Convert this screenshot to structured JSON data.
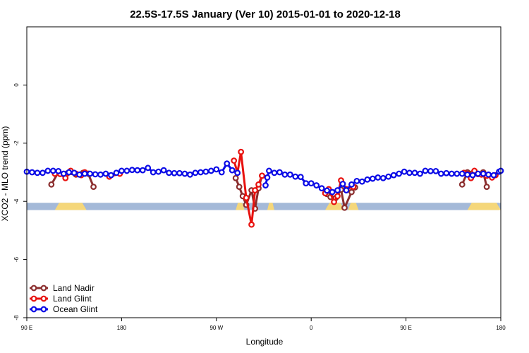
{
  "chart_data": {
    "type": "line",
    "title": "22.5S-17.5S January (Ver 10)   2015-01-01 to 2020-12-18",
    "xlabel": "Longitude",
    "ylabel": "XCO2 - MLO trend (ppm)",
    "xlim": [
      -90,
      180
    ],
    "ylim": [
      -8,
      2
    ],
    "x_ticks": [
      {
        "value": -90,
        "label": "90 E"
      },
      {
        "value": -36,
        "label": "180"
      },
      {
        "value": 18,
        "label": "90 W"
      },
      {
        "value": 72,
        "label": "0"
      },
      {
        "value": 126,
        "label": "90 E"
      },
      {
        "value": 180,
        "label": "180"
      }
    ],
    "y_ticks": [
      {
        "value": 0,
        "label": "0"
      },
      {
        "value": -2,
        "label": "-2"
      },
      {
        "value": -4,
        "label": "-4"
      },
      {
        "value": -6,
        "label": "-6"
      },
      {
        "value": -8,
        "label": "-8"
      }
    ],
    "grid": false,
    "legend_position": "bottom-left",
    "land_band": {
      "y_range": [
        -4.3,
        -4.05
      ],
      "ocean_color": "#a4b9d8",
      "land_color": "#f5d77a",
      "land_segments": [
        [
          -74,
          -56
        ],
        [
          29,
          34
        ],
        [
          47,
          51
        ],
        [
          80,
          91
        ],
        [
          93,
          99
        ],
        [
          161,
          180
        ]
      ]
    },
    "series": [
      {
        "name": "Land Nadir",
        "color": "#8b2e2e",
        "segments": [
          [
            [
              -76,
              -3.42
            ],
            [
              -72,
              -3.0
            ],
            [
              -67,
              -3.04
            ],
            [
              -62,
              -3.08
            ],
            [
              -58,
              -3.02
            ],
            [
              -55,
              -3.05
            ],
            [
              -52,
              -3.5
            ]
          ],
          [
            [
              29,
              -3.2
            ],
            [
              31,
              -3.5
            ],
            [
              33,
              -3.82
            ],
            [
              35,
              -4.12
            ],
            [
              38,
              -3.62
            ],
            [
              40,
              -4.25
            ],
            [
              42,
              -3.55
            ],
            [
              44,
              -3.12
            ]
          ],
          [
            [
              81,
              -3.75
            ],
            [
              83,
              -3.85
            ],
            [
              86,
              -3.88
            ],
            [
              89,
              -3.6
            ],
            [
              91,
              -4.22
            ],
            [
              95,
              -3.68
            ],
            [
              97,
              -3.52
            ]
          ],
          [
            [
              158,
              -3.42
            ],
            [
              161,
              -3.0
            ],
            [
              164,
              -3.03
            ],
            [
              167,
              -3.06
            ],
            [
              170,
              -3.0
            ],
            [
              172,
              -3.5
            ]
          ]
        ]
      },
      {
        "name": "Land Glint",
        "color": "#e8120f",
        "segments": [
          [
            [
              -74,
              -3.05
            ],
            [
              -71,
              -3.06
            ],
            [
              -68,
              -3.2
            ],
            [
              -65,
              -2.95
            ],
            [
              -62,
              -3.05
            ],
            [
              -59,
              -3.1
            ],
            [
              -57,
              -3.0
            ]
          ],
          [
            [
              -43,
              -3.15
            ],
            [
              -37,
              -3.05
            ]
          ],
          [
            [
              28,
              -2.6
            ],
            [
              30,
              -3.02
            ],
            [
              32,
              -2.3
            ],
            [
              35,
              -3.88
            ],
            [
              38,
              -4.8
            ],
            [
              40,
              -3.62
            ],
            [
              42,
              -3.42
            ],
            [
              44,
              -3.12
            ]
          ],
          [
            [
              80,
              -3.72
            ],
            [
              82,
              -3.58
            ],
            [
              85,
              -4.02
            ],
            [
              87,
              -3.82
            ],
            [
              89,
              -3.28
            ],
            [
              92,
              -3.58
            ],
            [
              96,
              -3.5
            ]
          ],
          [
            [
              159,
              -3.02
            ],
            [
              161,
              -3.05
            ],
            [
              163,
              -3.2
            ],
            [
              165,
              -2.95
            ],
            [
              167,
              -3.06
            ],
            [
              169,
              -3.08
            ],
            [
              172,
              -3.12
            ],
            [
              175,
              -3.18
            ],
            [
              177,
              -3.1
            ]
          ]
        ]
      },
      {
        "name": "Ocean Glint",
        "color": "#0a0ae6",
        "segments": [
          [
            [
              -90,
              -2.98
            ],
            [
              -87,
              -3.0
            ],
            [
              -84,
              -3.02
            ],
            [
              -81,
              -3.02
            ],
            [
              -78,
              -2.95
            ],
            [
              -75,
              -2.95
            ],
            [
              -72,
              -2.96
            ],
            [
              -69,
              -3.05
            ],
            [
              -66,
              -3.0
            ],
            [
              -63,
              -3.02
            ],
            [
              -60,
              -3.08
            ],
            [
              -57,
              -3.05
            ],
            [
              -54,
              -3.05
            ],
            [
              -51,
              -3.07
            ],
            [
              -48,
              -3.08
            ],
            [
              -45,
              -3.05
            ],
            [
              -42,
              -3.1
            ],
            [
              -39,
              -3.02
            ],
            [
              -36,
              -2.95
            ],
            [
              -33,
              -2.95
            ],
            [
              -30,
              -2.92
            ],
            [
              -27,
              -2.93
            ],
            [
              -24,
              -2.93
            ],
            [
              -21,
              -2.85
            ],
            [
              -18,
              -3.0
            ],
            [
              -15,
              -2.98
            ],
            [
              -12,
              -2.93
            ],
            [
              -9,
              -3.02
            ],
            [
              -6,
              -3.03
            ],
            [
              -3,
              -3.03
            ],
            [
              0,
              -3.05
            ],
            [
              3,
              -3.08
            ],
            [
              6,
              -3.02
            ],
            [
              9,
              -3.0
            ],
            [
              12,
              -2.98
            ],
            [
              15,
              -2.95
            ],
            [
              18,
              -2.9
            ],
            [
              21,
              -3.0
            ],
            [
              24,
              -2.7
            ],
            [
              27,
              -2.93
            ],
            [
              30,
              -3.02
            ]
          ],
          [
            [
              46,
              -3.45
            ],
            [
              47,
              -3.18
            ],
            [
              48,
              -2.95
            ],
            [
              51,
              -3.02
            ],
            [
              54,
              -3.0
            ],
            [
              57,
              -3.08
            ],
            [
              60,
              -3.08
            ],
            [
              63,
              -3.15
            ],
            [
              66,
              -3.16
            ],
            [
              69,
              -3.38
            ],
            [
              72,
              -3.38
            ],
            [
              75,
              -3.45
            ],
            [
              78,
              -3.55
            ],
            [
              81,
              -3.63
            ],
            [
              84,
              -3.68
            ],
            [
              87,
              -3.62
            ],
            [
              90,
              -3.4
            ],
            [
              92,
              -3.62
            ],
            [
              95,
              -3.42
            ],
            [
              98,
              -3.3
            ],
            [
              101,
              -3.32
            ],
            [
              104,
              -3.25
            ],
            [
              107,
              -3.22
            ],
            [
              110,
              -3.18
            ],
            [
              113,
              -3.2
            ],
            [
              116,
              -3.15
            ],
            [
              119,
              -3.1
            ],
            [
              122,
              -3.05
            ],
            [
              125,
              -2.98
            ],
            [
              128,
              -3.02
            ],
            [
              131,
              -3.02
            ],
            [
              134,
              -3.05
            ],
            [
              137,
              -2.95
            ],
            [
              140,
              -2.96
            ],
            [
              143,
              -2.96
            ],
            [
              146,
              -3.05
            ],
            [
              149,
              -3.03
            ],
            [
              152,
              -3.05
            ],
            [
              155,
              -3.05
            ],
            [
              158,
              -3.05
            ],
            [
              161,
              -3.08
            ],
            [
              164,
              -3.1
            ],
            [
              167,
              -3.05
            ],
            [
              170,
              -3.05
            ],
            [
              173,
              -3.08
            ],
            [
              176,
              -3.1
            ],
            [
              179,
              -2.98
            ],
            [
              180,
              -2.95
            ]
          ]
        ]
      }
    ]
  }
}
